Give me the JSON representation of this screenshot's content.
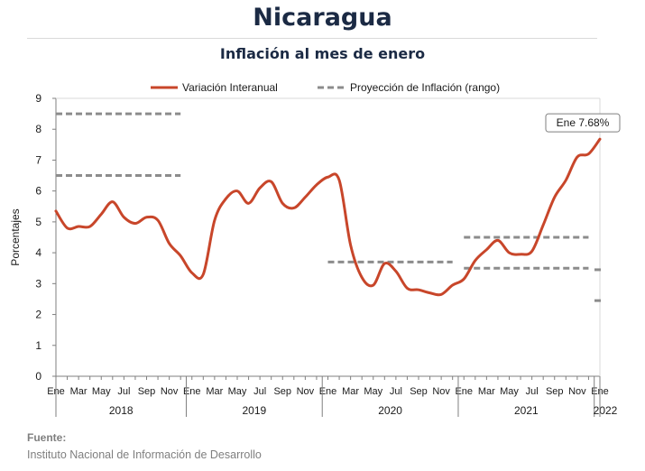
{
  "header": {
    "title": "Nicaragua",
    "subtitle": "Inflación al mes de enero"
  },
  "source": {
    "label": "Fuente:",
    "text": "Instituto Nacional de Información de  Desarrollo"
  },
  "chart_data": {
    "type": "line",
    "ylabel": "Porcentajes",
    "ylim": [
      0,
      9
    ],
    "yticks": [
      0,
      1,
      2,
      3,
      4,
      5,
      6,
      7,
      8,
      9
    ],
    "grid": false,
    "legend_position": "top",
    "month_labels": [
      "Ene",
      "Mar",
      "May",
      "Jul",
      "Sep",
      "Nov"
    ],
    "years": [
      "2018",
      "2019",
      "2020",
      "2021",
      "2022"
    ],
    "series": [
      {
        "name": "Variación Interanual",
        "color": "#c8462a",
        "style": "solid",
        "x": [
          "2018-01",
          "2018-02",
          "2018-03",
          "2018-04",
          "2018-05",
          "2018-06",
          "2018-07",
          "2018-08",
          "2018-09",
          "2018-10",
          "2018-11",
          "2018-12",
          "2019-01",
          "2019-02",
          "2019-03",
          "2019-04",
          "2019-05",
          "2019-06",
          "2019-07",
          "2019-08",
          "2019-09",
          "2019-10",
          "2019-11",
          "2019-12",
          "2020-01",
          "2020-02",
          "2020-03",
          "2020-04",
          "2020-05",
          "2020-06",
          "2020-07",
          "2020-08",
          "2020-09",
          "2020-10",
          "2020-11",
          "2020-12",
          "2021-01",
          "2021-02",
          "2021-03",
          "2021-04",
          "2021-05",
          "2021-06",
          "2021-07",
          "2021-08",
          "2021-09",
          "2021-10",
          "2021-11",
          "2021-12",
          "2022-01"
        ],
        "values": [
          5.35,
          4.8,
          4.85,
          4.85,
          5.25,
          5.65,
          5.15,
          4.95,
          5.15,
          5.05,
          4.3,
          3.9,
          3.35,
          3.3,
          5.05,
          5.75,
          6.0,
          5.6,
          6.1,
          6.3,
          5.6,
          5.45,
          5.8,
          6.2,
          6.45,
          6.35,
          4.25,
          3.2,
          2.95,
          3.65,
          3.4,
          2.85,
          2.8,
          2.7,
          2.65,
          2.95,
          3.15,
          3.75,
          4.1,
          4.4,
          4.0,
          3.95,
          4.05,
          4.9,
          5.8,
          6.35,
          7.1,
          7.2,
          7.68
        ]
      },
      {
        "name": "Proyección de Inflación (rango)",
        "color": "#8c8c8c",
        "style": "dashed",
        "segments": [
          {
            "x": [
              "2018-01",
              "2018-12"
            ],
            "y": 8.5
          },
          {
            "x": [
              "2018-01",
              "2018-12"
            ],
            "y": 6.5
          },
          {
            "x": [
              "2020-01",
              "2020-12"
            ],
            "y": 3.7
          },
          {
            "x": [
              "2021-01",
              "2021-12"
            ],
            "y": 4.5
          },
          {
            "x": [
              "2021-01",
              "2021-12"
            ],
            "y": 3.5
          },
          {
            "x": [
              "2022-01",
              "2022-01"
            ],
            "y": 3.45
          },
          {
            "x": [
              "2022-01",
              "2022-01"
            ],
            "y": 2.45
          }
        ]
      }
    ],
    "annotation": {
      "label": "Ene 7.68%",
      "x": "2022-01",
      "y": 7.68
    }
  }
}
